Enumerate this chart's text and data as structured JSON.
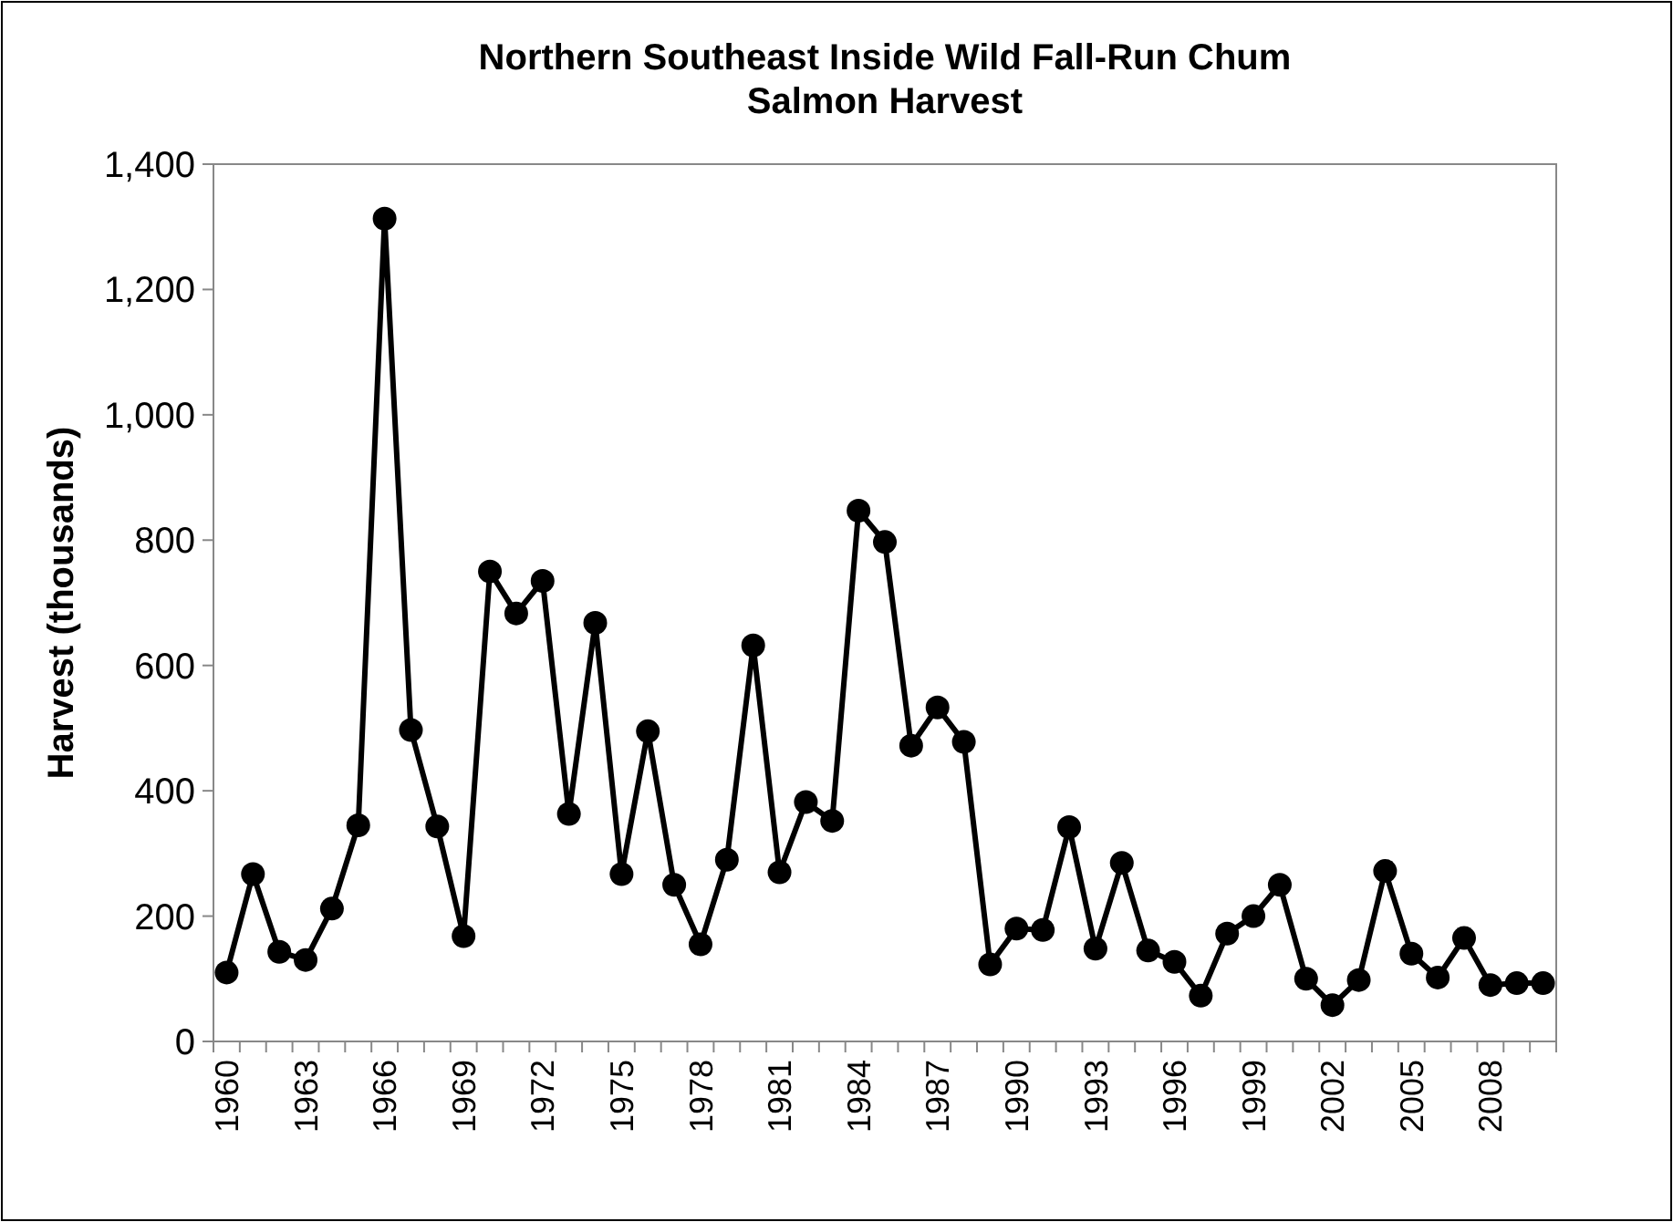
{
  "chart_data": {
    "type": "line",
    "title": "Northern Southeast Inside Wild Fall-Run Chum Salmon Harvest",
    "ylabel": "Harvest (thousands)",
    "categories": [
      "1960",
      null,
      null,
      "1963",
      null,
      null,
      "1966",
      null,
      null,
      "1969",
      null,
      null,
      "1972",
      null,
      null,
      "1975",
      null,
      null,
      "1978",
      null,
      null,
      "1981",
      null,
      null,
      "1984",
      null,
      null,
      "1987",
      null,
      null,
      "1990",
      null,
      null,
      "1993",
      null,
      null,
      "1996",
      null,
      null,
      "1999",
      null,
      null,
      "2002",
      null,
      null,
      "2005",
      null,
      null,
      "2008",
      null,
      null
    ],
    "series": [
      {
        "color": "#000000",
        "values": [
          110,
          267,
          143,
          130,
          212,
          345,
          1313,
          497,
          343,
          168,
          750,
          683,
          735,
          363,
          668,
          267,
          495,
          250,
          155,
          290,
          632,
          270,
          382,
          352,
          847,
          797,
          472,
          533,
          478,
          123,
          180,
          178,
          342,
          148,
          285,
          145,
          127,
          73,
          172,
          200,
          250,
          100,
          58,
          98,
          272,
          140,
          102,
          165,
          90,
          93,
          93
        ]
      }
    ],
    "ylim": [
      0,
      1400
    ],
    "yticks": [
      {
        "value": 0,
        "label": "0"
      },
      {
        "value": 200,
        "label": "200"
      },
      {
        "value": 400,
        "label": "400"
      },
      {
        "value": 600,
        "label": "600"
      },
      {
        "value": 800,
        "label": "800"
      },
      {
        "value": 1000,
        "label": "1,000"
      },
      {
        "value": 1200,
        "label": "1,200"
      },
      {
        "value": 1400,
        "label": "1,400"
      }
    ],
    "marker": "circle",
    "line_style": "solid",
    "grid": false
  }
}
